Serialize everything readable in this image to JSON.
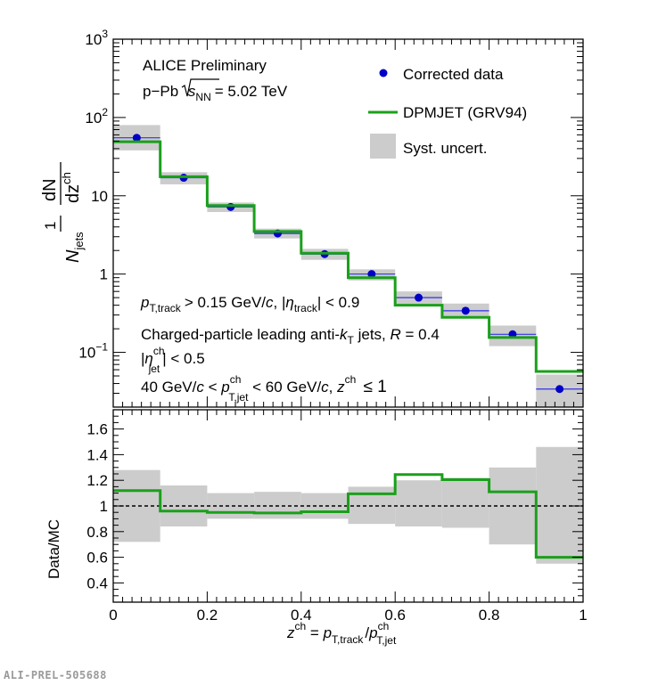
{
  "footer_label": "ALI-PREL-505688",
  "colors": {
    "data_marker": "#0000c8",
    "data_errorbar": "#3232e6",
    "mc_line": "#1aa01a",
    "syst_band": "#cccccc",
    "ratio_ref": "#000000"
  },
  "chart_data": [
    {
      "type": "line",
      "panel": "top",
      "log_y": true,
      "ylim": [
        0.02,
        1000
      ],
      "xlim": [
        0,
        1
      ],
      "y_ticks": [
        {
          "v": 1000,
          "base": "10",
          "exp": "3"
        },
        {
          "v": 100,
          "base": "10",
          "exp": "2"
        },
        {
          "v": 10,
          "base": "10",
          "exp": ""
        },
        {
          "v": 1,
          "base": "1",
          "exp": ""
        },
        {
          "v": 0.1,
          "base": "10",
          "exp": "−1"
        }
      ],
      "ylabel": {
        "prefix": "1",
        "N": "N",
        "N_sub": "jets",
        "dN": "dN",
        "dz": "dz",
        "dz_sup": "ch"
      },
      "texts": {
        "preliminary": "ALICE Preliminary",
        "system": "p−Pb",
        "sqrt_s": "s",
        "sqrt_sub": "NN",
        "energy": "= 5.02 TeV",
        "cut1": {
          "p": "p",
          "p_sub": "T,track",
          "a": "> 0.15 GeV/",
          "c": "c",
          "b": ", |",
          "eta": "η",
          "eta_sub": "track",
          "end": "| < 0.9"
        },
        "cut2": {
          "a": "Charged-particle leading anti-",
          "k": "k",
          "k_sub": "T",
          "b": " jets, ",
          "R": "R",
          "end": " = 0.4"
        },
        "cut3": {
          "a": "|",
          "eta": "η",
          "eta_sup": "ch",
          "eta_sub": "jet",
          "end": "| < 0.5"
        },
        "cut4": {
          "a": "40 GeV/",
          "c": "c",
          "b": " < ",
          "p": "p",
          "p_sup": "ch",
          "p_sub": "T,jet",
          "d": " < 60 GeV/",
          "c2": "c",
          "e": ", ",
          "z": "z",
          "z_sup": "ch",
          "end": " ≤ 1"
        }
      },
      "legend": [
        {
          "name": "Corrected data",
          "marker": "circle"
        },
        {
          "name": "DPMJET (GRV94)",
          "marker": "line"
        },
        {
          "name": "Syst. uncert.",
          "marker": "box"
        }
      ],
      "bin_edges": [
        0,
        0.1,
        0.2,
        0.3,
        0.4,
        0.5,
        0.6,
        0.7,
        0.8,
        0.9,
        1.0
      ],
      "series": [
        {
          "name": "Corrected data",
          "x": [
            0.05,
            0.15,
            0.25,
            0.35,
            0.45,
            0.55,
            0.65,
            0.75,
            0.85,
            0.95
          ],
          "values": [
            55,
            17,
            7.2,
            3.3,
            1.8,
            1.0,
            0.5,
            0.34,
            0.17,
            0.034
          ]
        },
        {
          "name": "DPMJET (GRV94)",
          "values": [
            49,
            17.5,
            7.5,
            3.5,
            1.85,
            0.9,
            0.4,
            0.28,
            0.155,
            0.057
          ]
        }
      ],
      "syst_low": [
        38,
        14,
        6.2,
        2.85,
        1.52,
        0.83,
        0.41,
        0.28,
        0.12,
        0.019
      ],
      "syst_high": [
        80,
        20,
        8.2,
        3.8,
        2.1,
        1.15,
        0.6,
        0.42,
        0.22,
        0.052
      ]
    },
    {
      "type": "line",
      "panel": "bottom",
      "ylim": [
        0.25,
        1.75
      ],
      "xlim": [
        0,
        1
      ],
      "ylabel": "Data/MC",
      "y_ticks": [
        "0.4",
        "0.6",
        "0.8",
        "1",
        "1.2",
        "1.4",
        "1.6"
      ],
      "x_ticks": [
        "0",
        "0.2",
        "0.4",
        "0.6",
        "0.8",
        "1"
      ],
      "xlabel": {
        "z": "z",
        "z_sup": "ch",
        "eq": " = ",
        "p1": "p",
        "p1_sub": "T,track",
        "slash": "/",
        "p2": "p",
        "p2_sup": "ch",
        "p2_sub": "T,jet"
      },
      "reference_line": 1,
      "bin_edges": [
        0,
        0.1,
        0.2,
        0.3,
        0.4,
        0.5,
        0.6,
        0.7,
        0.8,
        0.9,
        1.0
      ],
      "series": [
        {
          "name": "Data/MC",
          "values": [
            1.12,
            0.96,
            0.95,
            0.945,
            0.955,
            1.095,
            1.245,
            1.205,
            1.11,
            0.6
          ]
        }
      ],
      "syst_low": [
        0.72,
        0.84,
        0.9,
        0.9,
        0.9,
        0.86,
        0.84,
        0.83,
        0.7,
        0.55
      ],
      "syst_high": [
        1.28,
        1.16,
        1.1,
        1.11,
        1.1,
        1.15,
        1.2,
        1.22,
        1.3,
        1.46
      ]
    }
  ]
}
